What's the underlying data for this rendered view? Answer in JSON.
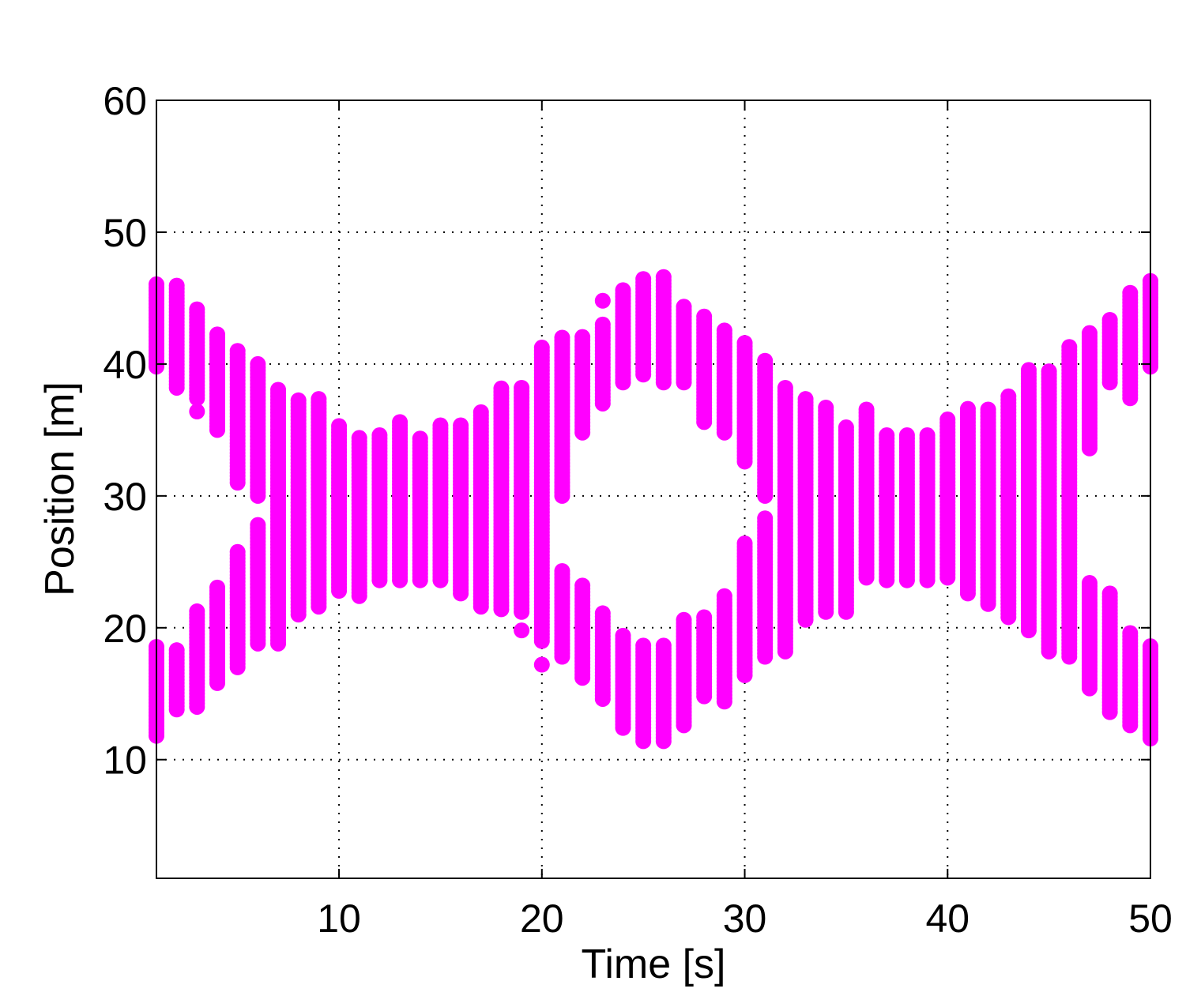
{
  "chart_data": {
    "type": "scatter",
    "title": "",
    "xlabel": "Time [s]",
    "ylabel": "Position [m]",
    "xlim": [
      1,
      50
    ],
    "ylim": [
      1,
      60
    ],
    "xticks": [
      10,
      20,
      30,
      40,
      50
    ],
    "yticks": [
      10,
      20,
      30,
      40,
      50,
      60
    ],
    "grid": true,
    "marker_color": "#ff00ff",
    "point_spacing": 0.25,
    "columns": [
      {
        "t": 1,
        "segments": [
          [
            39.8,
            46.2
          ],
          [
            11.8,
            18.7
          ]
        ]
      },
      {
        "t": 2,
        "segments": [
          [
            38.2,
            46.0
          ],
          [
            13.8,
            18.4
          ]
        ]
      },
      {
        "t": 3,
        "segments": [
          [
            36.4,
            36.4
          ],
          [
            37.4,
            44.2
          ],
          [
            14.0,
            21.4
          ]
        ]
      },
      {
        "t": 4,
        "segments": [
          [
            35.0,
            42.4
          ],
          [
            15.8,
            23.2
          ]
        ]
      },
      {
        "t": 5,
        "segments": [
          [
            31.0,
            41.2
          ],
          [
            17.0,
            25.8
          ]
        ]
      },
      {
        "t": 6,
        "segments": [
          [
            30.0,
            40.2
          ],
          [
            18.8,
            28.0
          ]
        ]
      },
      {
        "t": 7,
        "segments": [
          [
            18.8,
            38.2
          ]
        ]
      },
      {
        "t": 8,
        "segments": [
          [
            21.0,
            37.4
          ]
        ]
      },
      {
        "t": 9,
        "segments": [
          [
            21.6,
            37.4
          ]
        ]
      },
      {
        "t": 10,
        "segments": [
          [
            22.8,
            35.4
          ]
        ]
      },
      {
        "t": 11,
        "segments": [
          [
            22.4,
            34.6
          ]
        ]
      },
      {
        "t": 12,
        "segments": [
          [
            23.6,
            34.6
          ]
        ]
      },
      {
        "t": 13,
        "segments": [
          [
            23.6,
            35.8
          ]
        ]
      },
      {
        "t": 14,
        "segments": [
          [
            23.6,
            34.4
          ]
        ]
      },
      {
        "t": 15,
        "segments": [
          [
            23.6,
            35.4
          ]
        ]
      },
      {
        "t": 16,
        "segments": [
          [
            22.6,
            35.4
          ]
        ]
      },
      {
        "t": 17,
        "segments": [
          [
            21.6,
            36.4
          ]
        ]
      },
      {
        "t": 18,
        "segments": [
          [
            21.4,
            38.2
          ]
        ]
      },
      {
        "t": 19,
        "segments": [
          [
            19.8,
            19.8
          ],
          [
            21.2,
            38.2
          ]
        ]
      },
      {
        "t": 20,
        "segments": [
          [
            17.2,
            17.2
          ],
          [
            19.0,
            41.4
          ]
        ]
      },
      {
        "t": 21,
        "segments": [
          [
            30.0,
            42.0
          ],
          [
            17.8,
            24.4
          ]
        ]
      },
      {
        "t": 22,
        "segments": [
          [
            34.8,
            42.2
          ],
          [
            16.2,
            23.4
          ]
        ]
      },
      {
        "t": 23,
        "segments": [
          [
            44.8,
            44.8
          ],
          [
            37.0,
            43.2
          ],
          [
            14.6,
            21.2
          ]
        ]
      },
      {
        "t": 24,
        "segments": [
          [
            38.6,
            45.6
          ],
          [
            12.4,
            19.6
          ]
        ]
      },
      {
        "t": 25,
        "segments": [
          [
            39.2,
            46.6
          ],
          [
            11.4,
            18.8
          ]
        ]
      },
      {
        "t": 26,
        "segments": [
          [
            38.6,
            46.6
          ],
          [
            11.4,
            18.8
          ]
        ]
      },
      {
        "t": 27,
        "segments": [
          [
            38.6,
            44.4
          ],
          [
            12.6,
            20.8
          ]
        ]
      },
      {
        "t": 28,
        "segments": [
          [
            35.6,
            43.6
          ],
          [
            14.8,
            20.8
          ]
        ]
      },
      {
        "t": 29,
        "segments": [
          [
            34.8,
            42.6
          ],
          [
            14.4,
            22.4
          ]
        ]
      },
      {
        "t": 30,
        "segments": [
          [
            32.6,
            41.6
          ],
          [
            16.4,
            26.4
          ]
        ]
      },
      {
        "t": 31,
        "segments": [
          [
            30.0,
            40.4
          ],
          [
            17.8,
            28.4
          ]
        ]
      },
      {
        "t": 32,
        "segments": [
          [
            18.2,
            38.4
          ]
        ]
      },
      {
        "t": 33,
        "segments": [
          [
            20.6,
            37.4
          ]
        ]
      },
      {
        "t": 34,
        "segments": [
          [
            21.2,
            36.8
          ]
        ]
      },
      {
        "t": 35,
        "segments": [
          [
            21.2,
            35.4
          ]
        ]
      },
      {
        "t": 36,
        "segments": [
          [
            23.8,
            36.6
          ]
        ]
      },
      {
        "t": 37,
        "segments": [
          [
            23.6,
            34.6
          ]
        ]
      },
      {
        "t": 38,
        "segments": [
          [
            23.6,
            34.8
          ]
        ]
      },
      {
        "t": 39,
        "segments": [
          [
            23.6,
            34.6
          ]
        ]
      },
      {
        "t": 40,
        "segments": [
          [
            23.8,
            35.8
          ]
        ]
      },
      {
        "t": 41,
        "segments": [
          [
            22.6,
            36.6
          ]
        ]
      },
      {
        "t": 42,
        "segments": [
          [
            21.8,
            36.6
          ]
        ]
      },
      {
        "t": 43,
        "segments": [
          [
            20.8,
            37.6
          ]
        ]
      },
      {
        "t": 44,
        "segments": [
          [
            19.8,
            39.6
          ]
        ]
      },
      {
        "t": 45,
        "segments": [
          [
            18.2,
            39.6
          ]
        ]
      },
      {
        "t": 46,
        "segments": [
          [
            17.8,
            41.4
          ]
        ]
      },
      {
        "t": 47,
        "segments": [
          [
            33.6,
            42.4
          ],
          [
            15.4,
            23.6
          ]
        ]
      },
      {
        "t": 48,
        "segments": [
          [
            38.6,
            43.4
          ],
          [
            13.6,
            22.6
          ]
        ]
      },
      {
        "t": 49,
        "segments": [
          [
            37.4,
            45.6
          ],
          [
            12.6,
            19.6
          ]
        ]
      },
      {
        "t": 50,
        "segments": [
          [
            39.8,
            46.4
          ],
          [
            11.6,
            18.8
          ]
        ]
      }
    ]
  }
}
